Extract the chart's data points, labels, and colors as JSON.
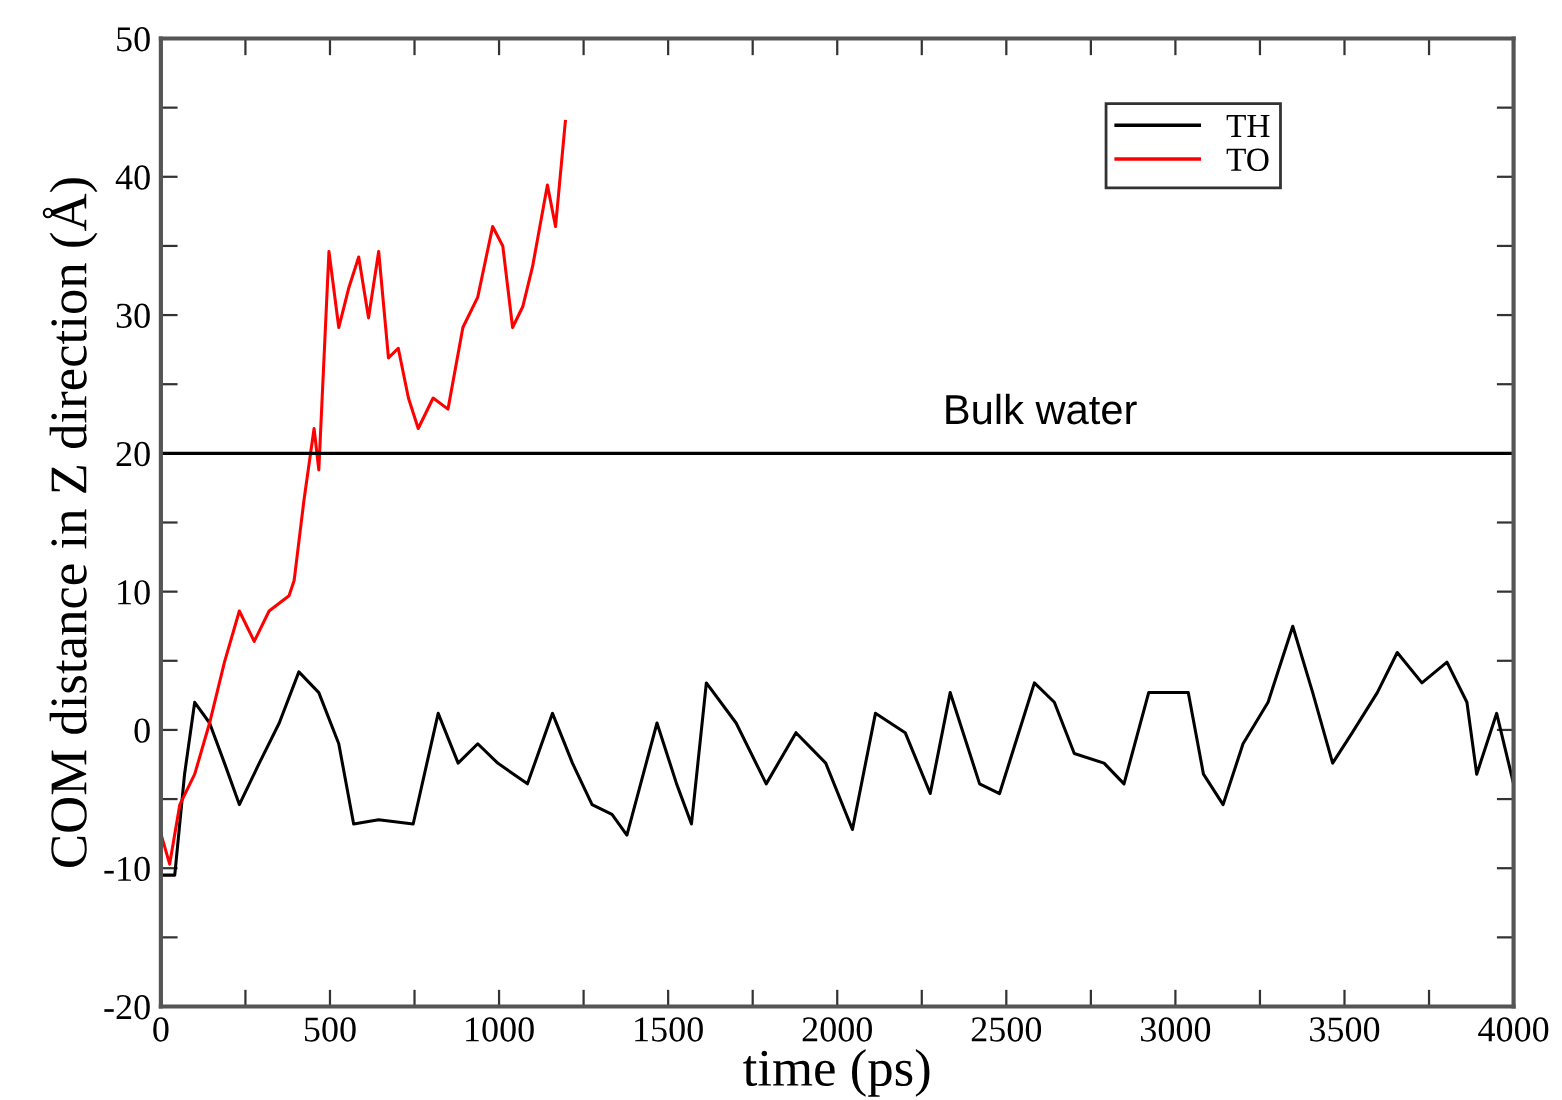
{
  "chart_data": {
    "type": "line",
    "xlabel": "time (ps)",
    "ylabel": "COM distance in Z direction (Å)",
    "xlim": [
      0,
      4000
    ],
    "ylim": [
      -20,
      50
    ],
    "xticks": [
      0,
      {
        "value": 250,
        "label": null
      },
      500,
      {
        "value": 750,
        "label": null
      },
      1000,
      {
        "value": 1250,
        "label": null
      },
      1500,
      {
        "value": 1750,
        "label": null
      },
      2000,
      {
        "value": 2250,
        "label": null
      },
      2500,
      {
        "value": 2750,
        "label": null
      },
      3000,
      {
        "value": 3250,
        "label": null
      },
      3500,
      {
        "value": 3750,
        "label": null
      },
      4000
    ],
    "yticks": [
      -20,
      {
        "value": -15,
        "label": null
      },
      -10,
      {
        "value": -5,
        "label": null
      },
      0,
      {
        "value": 5,
        "label": null
      },
      10,
      {
        "value": 15,
        "label": null
      },
      20,
      {
        "value": 25,
        "label": null
      },
      30,
      {
        "value": 35,
        "label": null
      },
      40,
      {
        "value": 45,
        "label": null
      },
      50
    ],
    "grid": false,
    "legend": "top right",
    "ref_lines": [
      {
        "axis": "y",
        "value": 20,
        "label": "Bulk water",
        "color": "#000000"
      }
    ],
    "series": [
      {
        "name": "TH",
        "color": "#000000",
        "x": [
          0,
          41,
          70,
          100,
          144,
          188,
          232,
          291,
          350,
          408,
          467,
          526,
          570,
          644,
          746,
          820,
          879,
          937,
          996,
          1084,
          1158,
          1217,
          1275,
          1334,
          1378,
          1467,
          1525,
          1569,
          1613,
          1701,
          1790,
          1878,
          1966,
          2045,
          2113,
          2201,
          2275,
          2334,
          2421,
          2480,
          2583,
          2642,
          2701,
          2789,
          2848,
          2921,
          3038,
          3083,
          3141,
          3200,
          3274,
          3347,
          3406,
          3465,
          3523,
          3597,
          3656,
          3729,
          3803,
          3862,
          3891,
          3950,
          4000
        ],
        "values": [
          -10.5,
          -10.5,
          -3.2,
          2.0,
          0.5,
          -2.4,
          -5.4,
          -2.4,
          0.5,
          4.2,
          2.7,
          -1.0,
          -6.8,
          -6.5,
          -6.8,
          1.2,
          -2.4,
          -1.0,
          -2.4,
          -3.9,
          1.2,
          -2.4,
          -5.4,
          -6.1,
          -7.6,
          0.5,
          -3.9,
          -6.8,
          3.4,
          0.5,
          -3.9,
          -0.2,
          -2.4,
          -7.2,
          1.2,
          -0.2,
          -4.6,
          2.7,
          -3.9,
          -4.6,
          3.4,
          2.0,
          -1.7,
          -2.4,
          -3.9,
          2.7,
          2.7,
          -3.2,
          -5.4,
          -1.0,
          2.0,
          7.5,
          2.7,
          -2.4,
          -0.2,
          2.7,
          5.6,
          3.4,
          4.9,
          2.0,
          -3.2,
          1.2,
          -3.9
        ]
      },
      {
        "name": "TO",
        "color": "#ff0000",
        "x": [
          0,
          26,
          56,
          100,
          144,
          188,
          232,
          276,
          320,
          379,
          394,
          423,
          453,
          467,
          497,
          526,
          556,
          585,
          614,
          644,
          673,
          702,
          732,
          761,
          805,
          849,
          893,
          937,
          981,
          1011,
          1040,
          1070,
          1099,
          1143,
          1167,
          1196
        ],
        "values": [
          -7.5,
          -9.7,
          -5.4,
          -3.2,
          0.5,
          4.9,
          8.6,
          6.4,
          8.6,
          9.7,
          10.8,
          16.6,
          21.8,
          18.8,
          34.6,
          29.1,
          32.0,
          34.2,
          29.8,
          34.6,
          26.9,
          27.6,
          24.0,
          21.8,
          24.0,
          23.2,
          29.1,
          31.3,
          36.4,
          35.0,
          29.1,
          30.6,
          33.5,
          39.4,
          36.4,
          44.0
        ]
      }
    ]
  }
}
